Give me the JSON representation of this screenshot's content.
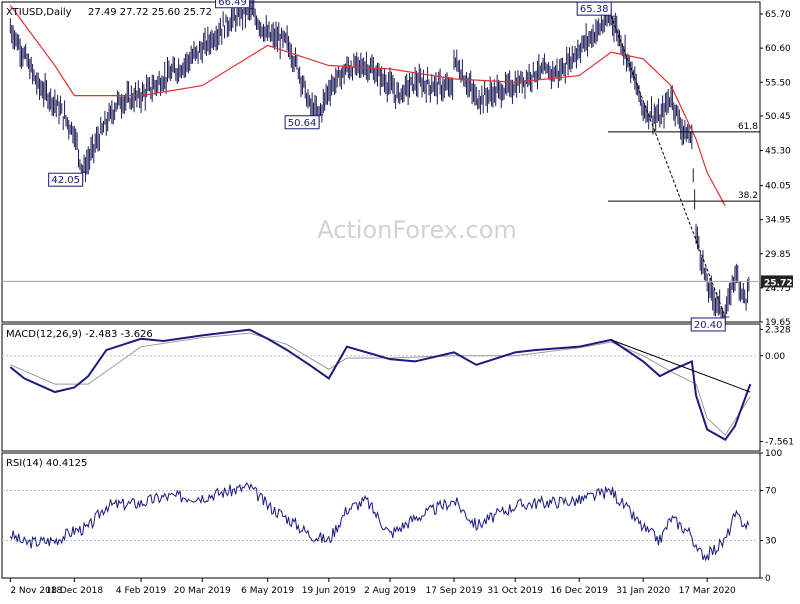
{
  "header": {
    "symbol": "XTIUSD,Daily",
    "ohlc": "27.49 27.72 25.60 25.72",
    "macd_label": "MACD(12,26,9) -2.483 -3.626",
    "rsi_label": "RSI(14) 40.4125"
  },
  "watermark": "ActionForex.com",
  "colors": {
    "price_bars": "#1a1a55",
    "moving_average": "#e03030",
    "macd_line": "#1a1a80",
    "signal_line": "#9a9a9a",
    "grid": "#bbbbbb",
    "annotation_border": "#1a1a80",
    "current_price_box": "#222222"
  },
  "chart_data": [
    {
      "type": "line",
      "panel": "price",
      "title": "XTIUSD,Daily",
      "ylim": [
        19.65,
        67.5
      ],
      "y_ticks": [
        "65.70",
        "60.60",
        "55.50",
        "50.45",
        "45.30",
        "40.05",
        "34.95",
        "29.85",
        "24.75",
        "19.65"
      ],
      "x_tick_labels": [
        "2 Nov 2018",
        "18 Dec 2018",
        "4 Feb 2019",
        "20 Mar 2019",
        "6 May 2019",
        "19 Jun 2019",
        "2 Aug 2019",
        "17 Sep 2019",
        "31 Oct 2019",
        "16 Dec 2019",
        "31 Jan 2020",
        "17 Mar 2020"
      ],
      "series": [
        {
          "x": [
            "2 Nov 2018",
            "12 Nov 2018",
            "22 Nov 2018",
            "4 Dec 2018",
            "18 Dec 2018",
            "24 Dec 2018",
            "4 Jan 2019",
            "18 Jan 2019",
            "4 Feb 2019",
            "20 Feb 2019",
            "6 Mar 2019",
            "20 Mar 2019",
            "5 Apr 2019",
            "23 Apr 2019",
            "6 May 2019",
            "20 May 2019",
            "29 May 2019",
            "5 Jun 2019",
            "12 Jun 2019",
            "19 Jun 2019",
            "2 Jul 2019",
            "16 Jul 2019",
            "2 Aug 2019",
            "7 Aug 2019",
            "20 Aug 2019",
            "3 Sep 2019",
            "16 Sep 2019",
            "17 Sep 2019",
            "3 Oct 2019",
            "17 Oct 2019",
            "31 Oct 2019",
            "14 Nov 2019",
            "2 Dec 2019",
            "16 Dec 2019",
            "8 Jan 2020",
            "20 Jan 2020",
            "31 Jan 2020",
            "12 Feb 2020",
            "20 Feb 2020",
            "28 Feb 2020",
            "6 Mar 2020",
            "9 Mar 2020",
            "17 Mar 2020",
            "30 Mar 2020",
            "6 Apr 2020",
            "14 Apr 2020",
            "17 Apr 2020"
          ],
          "values": [
            63.6,
            59.5,
            55.0,
            52.5,
            48.0,
            42.05,
            47.0,
            52.5,
            53.5,
            56.0,
            58.0,
            60.5,
            64.0,
            66.49,
            62.5,
            61.5,
            57.0,
            52.0,
            50.64,
            54.5,
            57.5,
            58.0,
            55.0,
            53.5,
            55.5,
            55.0,
            54.5,
            59.0,
            53.0,
            54.0,
            55.0,
            57.0,
            57.0,
            60.5,
            65.38,
            59.0,
            51.5,
            50.0,
            53.5,
            48.5,
            47.0,
            33.0,
            25.0,
            20.4,
            27.0,
            23.0,
            25.72
          ]
        },
        {
          "name": "",
          "x": [
            "2 Nov 2018",
            "4 Dec 2018",
            "18 Dec 2018",
            "4 Feb 2019",
            "20 Mar 2019",
            "6 May 2019",
            "19 Jun 2019",
            "2 Aug 2019",
            "17 Sep 2019",
            "31 Oct 2019",
            "16 Dec 2019",
            "8 Jan 2020",
            "31 Jan 2020",
            "20 Feb 2020",
            "9 Mar 2020",
            "17 Mar 2020",
            "30 Mar 2020"
          ],
          "values": [
            67.0,
            58.0,
            53.5,
            53.5,
            55.0,
            61.0,
            58.0,
            57.5,
            56.0,
            55.5,
            56.5,
            60.0,
            59.0,
            55.0,
            47.0,
            42.0,
            37.0
          ]
        }
      ],
      "annotations": [
        {
          "label": "66.49",
          "date": "23 Apr 2019",
          "value": 66.49
        },
        {
          "label": "42.05",
          "date": "24 Dec 2018",
          "value": 42.05
        },
        {
          "label": "50.64",
          "date": "12 Jun 2019",
          "value": 50.64
        },
        {
          "label": "65.38",
          "date": "8 Jan 2020",
          "value": 65.38
        },
        {
          "label": "20.40",
          "date": "30 Mar 2020",
          "value": 20.4
        }
      ],
      "fibonacci_levels": [
        {
          "label": "61.8",
          "value": 48.08
        },
        {
          "label": "38.2",
          "value": 37.72
        }
      ],
      "current_price": "25.72"
    },
    {
      "type": "line",
      "panel": "macd",
      "title": "MACD(12,26,9) -2.483 -3.626",
      "ylim": [
        -8.4,
        2.8
      ],
      "y_ticks": [
        "2.328",
        "0.00",
        "-7.561"
      ],
      "series": [
        {
          "name": "",
          "x": [
            "2 Nov 2018",
            "12 Nov 2018",
            "4 Dec 2018",
            "18 Dec 2018",
            "28 Dec 2018",
            "10 Jan 2019",
            "4 Feb 2019",
            "20 Feb 2019",
            "20 Mar 2019",
            "23 Apr 2019",
            "6 May 2019",
            "20 May 2019",
            "5 Jun 2019",
            "19 Jun 2019",
            "2 Jul 2019",
            "2 Aug 2019",
            "20 Aug 2019",
            "17 Sep 2019",
            "3 Oct 2019",
            "31 Oct 2019",
            "14 Nov 2019",
            "16 Dec 2019",
            "8 Jan 2020",
            "31 Jan 2020",
            "12 Feb 2020",
            "20 Feb 2020",
            "6 Mar 2020",
            "9 Mar 2020",
            "17 Mar 2020",
            "30 Mar 2020",
            "6 Apr 2020",
            "17 Apr 2020"
          ],
          "values": [
            -1.0,
            -2.0,
            -3.2,
            -2.8,
            -1.8,
            0.5,
            1.5,
            1.3,
            1.8,
            2.3,
            1.5,
            0.5,
            -0.8,
            -2.0,
            0.8,
            -0.3,
            -0.5,
            0.3,
            -0.8,
            0.3,
            0.5,
            0.8,
            1.4,
            -0.5,
            -1.8,
            -1.3,
            -0.5,
            -3.5,
            -6.5,
            -7.4,
            -6.2,
            -2.5
          ]
        },
        {
          "name": "",
          "x": [
            "2 Nov 2018",
            "4 Dec 2018",
            "28 Dec 2018",
            "4 Feb 2019",
            "20 Mar 2019",
            "23 Apr 2019",
            "20 May 2019",
            "19 Jun 2019",
            "2 Jul 2019",
            "2 Aug 2019",
            "17 Sep 2019",
            "31 Oct 2019",
            "16 Dec 2019",
            "8 Jan 2020",
            "31 Jan 2020",
            "20 Feb 2020",
            "9 Mar 2020",
            "17 Mar 2020",
            "30 Mar 2020",
            "17 Apr 2020"
          ],
          "values": [
            -0.8,
            -2.5,
            -2.5,
            0.8,
            1.6,
            2.0,
            1.0,
            -1.2,
            -0.2,
            -0.2,
            0.0,
            0.0,
            0.7,
            1.2,
            0.0,
            -1.4,
            -2.5,
            -5.5,
            -7.0,
            -3.6
          ]
        }
      ],
      "trendline": {
        "from_date": "8 Jan 2020",
        "from_value": 1.4,
        "to_date": "17 Apr 2020",
        "to_value": -3.2
      }
    },
    {
      "type": "line",
      "panel": "rsi",
      "title": "RSI(14) 40.4125",
      "ylim": [
        0,
        100
      ],
      "y_ticks": [
        "100",
        "70",
        "30",
        "0"
      ],
      "series": [
        {
          "name": "",
          "x": [
            "2 Nov 2018",
            "12 Nov 2018",
            "4 Dec 2018",
            "18 Dec 2018",
            "28 Dec 2018",
            "10 Jan 2019",
            "4 Feb 2019",
            "20 Feb 2019",
            "20 Mar 2019",
            "23 Apr 2019",
            "6 May 2019",
            "20 May 2019",
            "5 Jun 2019",
            "19 Jun 2019",
            "2 Jul 2019",
            "16 Jul 2019",
            "2 Aug 2019",
            "20 Aug 2019",
            "17 Sep 2019",
            "3 Oct 2019",
            "31 Oct 2019",
            "14 Nov 2019",
            "16 Dec 2019",
            "8 Jan 2020",
            "31 Jan 2020",
            "12 Feb 2020",
            "20 Feb 2020",
            "6 Mar 2020",
            "9 Mar 2020",
            "17 Mar 2020",
            "30 Mar 2020",
            "6 Apr 2020",
            "17 Apr 2020"
          ],
          "values": [
            35,
            28,
            30,
            38,
            40,
            58,
            60,
            65,
            65,
            73,
            58,
            48,
            35,
            30,
            55,
            62,
            35,
            48,
            62,
            42,
            58,
            60,
            62,
            70,
            40,
            30,
            48,
            35,
            22,
            18,
            30,
            50,
            40
          ]
        }
      ]
    }
  ]
}
